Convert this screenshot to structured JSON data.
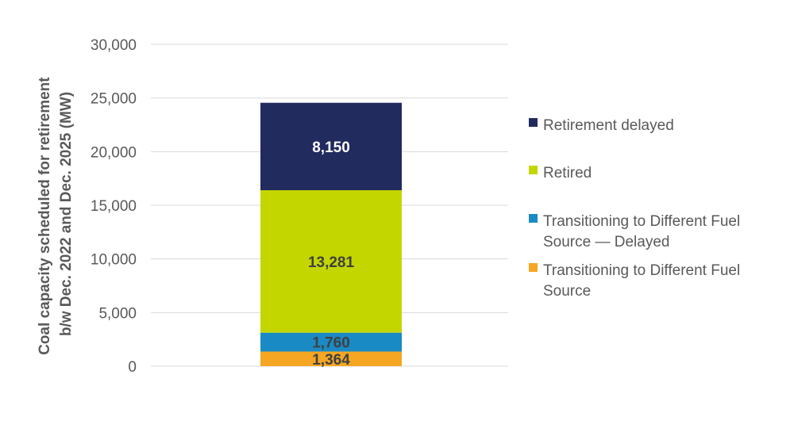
{
  "chart_data": {
    "type": "bar",
    "stacked": true,
    "categories": [
      ""
    ],
    "ylabel": [
      "Coal capacity scheduled for retirement",
      "b/w Dec. 2022 and Dec. 2025 (MW)"
    ],
    "ylim": [
      0,
      30000
    ],
    "yticks": [
      0,
      5000,
      10000,
      15000,
      20000,
      25000,
      30000
    ],
    "ytick_labels": [
      "0",
      "5,000",
      "10,000",
      "15,000",
      "20,000",
      "25,000",
      "30,000"
    ],
    "grid": true,
    "legend_position": "right",
    "series": [
      {
        "name": "Transitioning to Different Fuel Source",
        "legend_lines": [
          "Transitioning to Different Fuel",
          "Source"
        ],
        "values": [
          1364
        ],
        "label": "1,364",
        "color": "#F5A623",
        "label_color": "#404040"
      },
      {
        "name": "Transitioning to Different Fuel Source — Delayed",
        "legend_lines": [
          "Transitioning to Different Fuel",
          "Source — Delayed"
        ],
        "values": [
          1760
        ],
        "label": "1,760",
        "color": "#1A8AC4",
        "label_color": "#404040"
      },
      {
        "name": "Retired",
        "legend_lines": [
          "Retired"
        ],
        "values": [
          13281
        ],
        "label": "13,281",
        "color": "#C3D600",
        "label_color": "#404040"
      },
      {
        "name": "Retirement delayed",
        "legend_lines": [
          "Retirement delayed"
        ],
        "values": [
          8150
        ],
        "label": "8,150",
        "color": "#222B5E",
        "label_color": "#FFFFFF"
      }
    ]
  }
}
